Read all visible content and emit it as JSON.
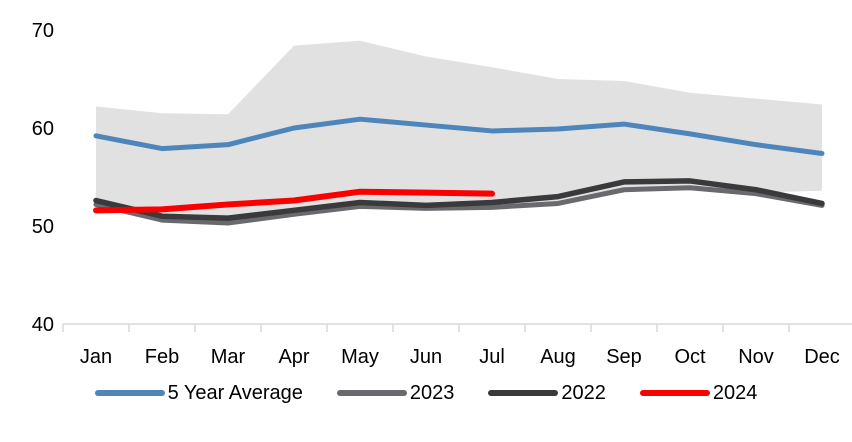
{
  "chart_data": {
    "type": "line",
    "title": "",
    "xlabel": "",
    "ylabel": "",
    "x_labels": [
      "Jan",
      "Feb",
      "Mar",
      "Apr",
      "May",
      "Jun",
      "Jul",
      "Aug",
      "Sep",
      "Oct",
      "Nov",
      "Dec"
    ],
    "y_ticks": [
      70,
      60,
      50,
      40
    ],
    "ylim": [
      40,
      70
    ],
    "grid": false,
    "legend_position": "bottom",
    "range_band": {
      "name": "5-year-range-band",
      "color": "#E1E1E1",
      "top": [
        62.2,
        61.5,
        61.4,
        68.4,
        68.9,
        67.3,
        66.2,
        65.0,
        64.8,
        63.6,
        63.0,
        62.4
      ],
      "bottom": [
        52.8,
        51.2,
        51.0,
        51.7,
        52.1,
        51.9,
        52.0,
        52.2,
        53.5,
        53.8,
        53.4,
        53.6
      ]
    },
    "series": [
      {
        "name": "5 Year Average",
        "color": "#4E86BC",
        "stroke_width": 5,
        "values": [
          59.2,
          57.9,
          58.3,
          60.0,
          60.9,
          60.3,
          59.7,
          59.9,
          60.4,
          59.4,
          58.3,
          57.4
        ]
      },
      {
        "name": "2023",
        "color": "#6A6A6E",
        "stroke_width": 5,
        "values": [
          52.2,
          50.6,
          50.3,
          51.2,
          52.0,
          51.8,
          51.9,
          52.3,
          53.7,
          53.9,
          53.3,
          52.1
        ]
      },
      {
        "name": "2022",
        "color": "#3A3A3C",
        "stroke_width": 5.5,
        "values": [
          52.6,
          51.0,
          50.8,
          51.6,
          52.4,
          52.1,
          52.4,
          53.0,
          54.5,
          54.6,
          53.7,
          52.3
        ]
      },
      {
        "name": "2024",
        "color": "#FA0000",
        "stroke_width": 6,
        "values": [
          51.6,
          51.7,
          52.2,
          52.6,
          53.5,
          53.4,
          53.3
        ]
      }
    ],
    "legend": [
      {
        "label": "5 Year Average",
        "color": "#4E86BC"
      },
      {
        "label": "2023",
        "color": "#6A6A6E"
      },
      {
        "label": "2022",
        "color": "#3A3A3C"
      },
      {
        "label": "2024",
        "color": "#FA0000"
      }
    ],
    "axis_color": "#D9D9D9",
    "text_color": "#000000"
  }
}
